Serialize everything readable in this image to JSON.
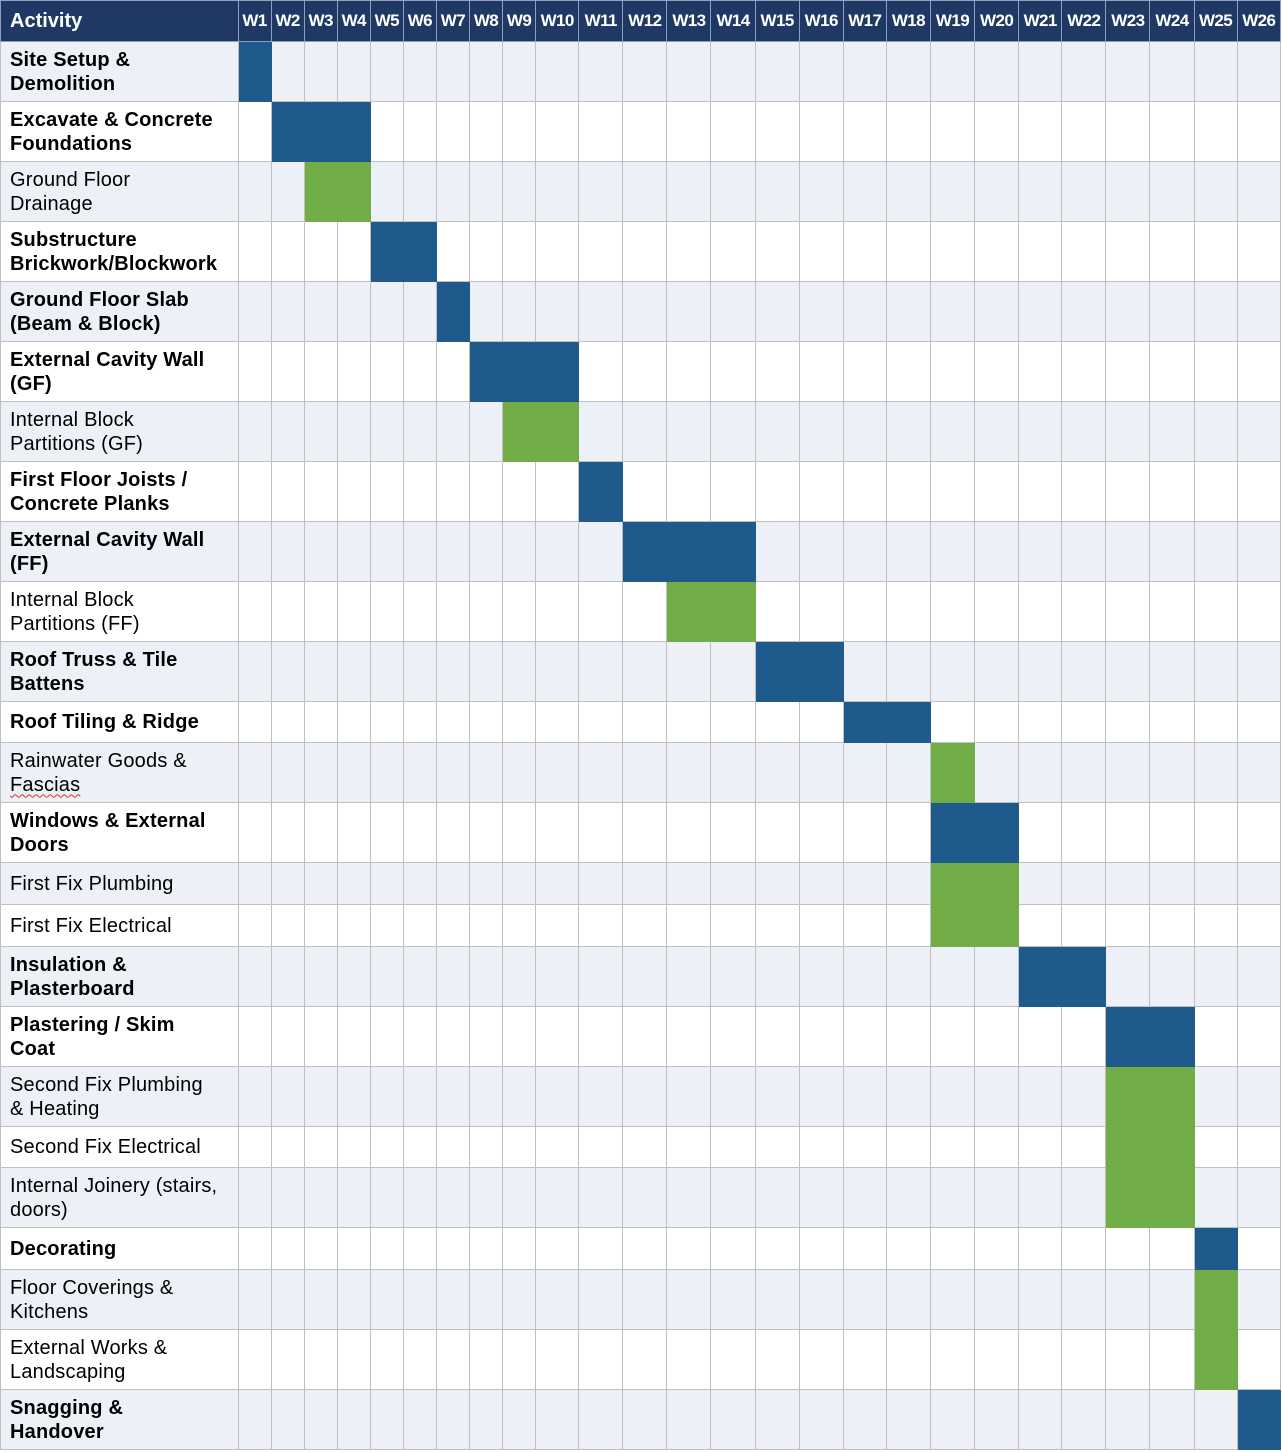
{
  "table": {
    "header_activity": "Activity",
    "weeks": [
      "W1",
      "W2",
      "W3",
      "W4",
      "W5",
      "W6",
      "W7",
      "W8",
      "W9",
      "W10",
      "W11",
      "W12",
      "W13",
      "W14",
      "W15",
      "W16",
      "W17",
      "W18",
      "W19",
      "W20",
      "W21",
      "W22",
      "W23",
      "W24",
      "W25",
      "W26"
    ],
    "colors": {
      "header": "#1f3864",
      "main_task": "#1f5a8c",
      "sub_task": "#70ad47",
      "row_shade": "#edf0f7"
    },
    "rows": [
      {
        "line1": "Site Setup &",
        "line2": "Demolition",
        "bold": true,
        "start": 1,
        "end": 1,
        "kind": "main"
      },
      {
        "line1": "Excavate & Concrete",
        "line2": "Foundations",
        "bold": true,
        "start": 2,
        "end": 4,
        "kind": "main"
      },
      {
        "line1": "Ground Floor",
        "line2": "Drainage",
        "bold": false,
        "start": 3,
        "end": 4,
        "kind": "sub"
      },
      {
        "line1": "Substructure",
        "line2": "Brickwork/Blockwork",
        "bold": true,
        "start": 5,
        "end": 6,
        "kind": "main"
      },
      {
        "line1": "Ground Floor Slab",
        "line2": "(Beam & Block)",
        "bold": true,
        "start": 7,
        "end": 7,
        "kind": "main"
      },
      {
        "line1": "External Cavity Wall",
        "line2": "(GF)",
        "bold": true,
        "start": 8,
        "end": 10,
        "kind": "main"
      },
      {
        "line1": "Internal Block",
        "line2": "Partitions (GF)",
        "bold": false,
        "start": 9,
        "end": 10,
        "kind": "sub"
      },
      {
        "line1": "First Floor Joists /",
        "line2": "Concrete Planks",
        "bold": true,
        "start": 11,
        "end": 11,
        "kind": "main"
      },
      {
        "line1": "External Cavity Wall",
        "line2": "(FF)",
        "bold": true,
        "start": 12,
        "end": 14,
        "kind": "main"
      },
      {
        "line1": "Internal Block",
        "line2": "Partitions (FF)",
        "bold": false,
        "start": 13,
        "end": 14,
        "kind": "sub"
      },
      {
        "line1": "Roof Truss & Tile",
        "line2": "Battens",
        "bold": true,
        "start": 15,
        "end": 16,
        "kind": "main"
      },
      {
        "line1": "Roof Tiling & Ridge",
        "line2": "",
        "bold": true,
        "start": 17,
        "end": 18,
        "kind": "main"
      },
      {
        "line1": "Rainwater Goods &",
        "line2": "Fascias",
        "bold": false,
        "start": 19,
        "end": 19,
        "kind": "sub",
        "squiggle2": true
      },
      {
        "line1": "Windows & External",
        "line2": "Doors",
        "bold": true,
        "start": 19,
        "end": 20,
        "kind": "main"
      },
      {
        "line1": "First Fix Plumbing",
        "line2": "",
        "bold": false,
        "start": 19,
        "end": 20,
        "kind": "sub"
      },
      {
        "line1": "First Fix Electrical",
        "line2": "",
        "bold": false,
        "start": 19,
        "end": 20,
        "kind": "sub"
      },
      {
        "line1": "Insulation &",
        "line2": "Plasterboard",
        "bold": true,
        "start": 21,
        "end": 22,
        "kind": "main"
      },
      {
        "line1": "Plastering / Skim",
        "line2": "Coat",
        "bold": true,
        "start": 23,
        "end": 24,
        "kind": "main"
      },
      {
        "line1": "Second Fix Plumbing",
        "line2": "& Heating",
        "bold": false,
        "start": 23,
        "end": 24,
        "kind": "sub"
      },
      {
        "line1": "Second Fix Electrical",
        "line2": "",
        "bold": false,
        "start": 23,
        "end": 24,
        "kind": "sub"
      },
      {
        "line1": "Internal Joinery (stairs,",
        "line2": "doors)",
        "bold": false,
        "start": 23,
        "end": 24,
        "kind": "sub"
      },
      {
        "line1": "Decorating",
        "line2": "",
        "bold": true,
        "start": 25,
        "end": 25,
        "kind": "main"
      },
      {
        "line1": "Floor Coverings &",
        "line2": "Kitchens",
        "bold": false,
        "start": 25,
        "end": 25,
        "kind": "sub"
      },
      {
        "line1": "External Works &",
        "line2": "Landscaping",
        "bold": false,
        "start": 25,
        "end": 25,
        "kind": "sub"
      },
      {
        "line1": "Snagging &",
        "line2": "Handover",
        "bold": true,
        "start": 26,
        "end": 26,
        "kind": "main"
      }
    ]
  }
}
